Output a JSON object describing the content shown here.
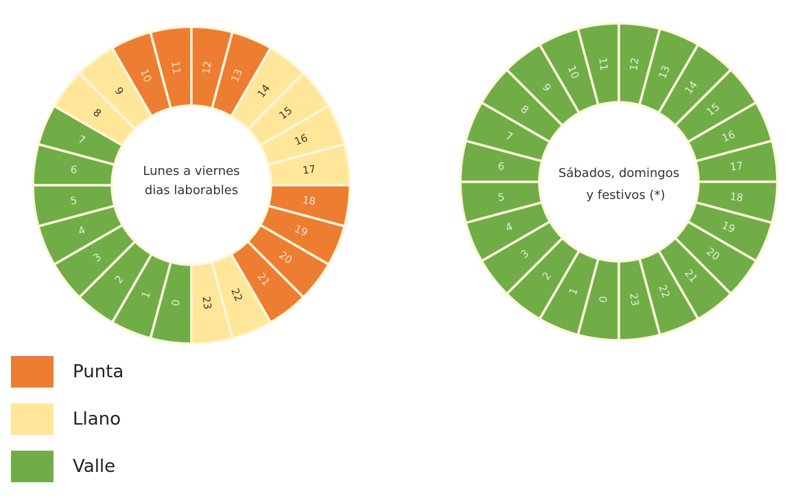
{
  "colors": {
    "punta": "#ED7D31",
    "llano": "#FFE699",
    "valle": "#70AD47",
    "divider": "#FFF6DC",
    "label_on_punta": "#FCE4CC",
    "label_on_llano": "#3A3A2A",
    "label_on_valle": "#E2F0D9"
  },
  "legend": [
    {
      "key": "punta",
      "label": "Punta"
    },
    {
      "key": "llano",
      "label": "Llano"
    },
    {
      "key": "valle",
      "label": "Valle"
    }
  ],
  "chart_data": [
    {
      "type": "pie",
      "subtype": "donut-24h",
      "title_lines": [
        "Lunes a viernes",
        "dias laborables"
      ],
      "center": [
        279,
        270
      ],
      "hours": [
        0,
        1,
        2,
        3,
        4,
        5,
        6,
        7,
        8,
        9,
        10,
        11,
        12,
        13,
        14,
        15,
        16,
        17,
        18,
        19,
        20,
        21,
        22,
        23
      ],
      "periods": [
        "valle",
        "valle",
        "valle",
        "valle",
        "valle",
        "valle",
        "valle",
        "valle",
        "llano",
        "llano",
        "punta",
        "punta",
        "punta",
        "punta",
        "llano",
        "llano",
        "llano",
        "llano",
        "punta",
        "punta",
        "punta",
        "punta",
        "llano",
        "llano"
      ]
    },
    {
      "type": "pie",
      "subtype": "donut-24h",
      "title_lines": [
        "Sábados, domingos",
        "y festivos (*)"
      ],
      "center": [
        902,
        265
      ],
      "hours": [
        0,
        1,
        2,
        3,
        4,
        5,
        6,
        7,
        8,
        9,
        10,
        11,
        12,
        13,
        14,
        15,
        16,
        17,
        18,
        19,
        20,
        21,
        22,
        23
      ],
      "periods": [
        "valle",
        "valle",
        "valle",
        "valle",
        "valle",
        "valle",
        "valle",
        "valle",
        "valle",
        "valle",
        "valle",
        "valle",
        "valle",
        "valle",
        "valle",
        "valle",
        "valle",
        "valle",
        "valle",
        "valle",
        "valle",
        "valle",
        "valle",
        "valle"
      ]
    }
  ]
}
